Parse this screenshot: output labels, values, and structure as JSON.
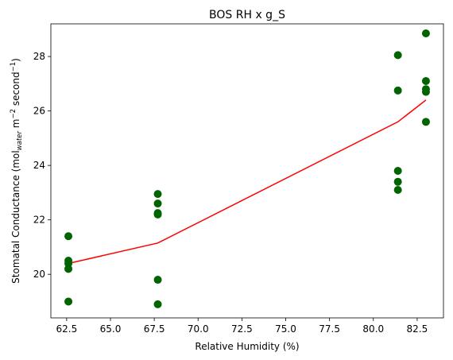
{
  "chart_data": {
    "type": "scatter",
    "title": "BOS RH x g_S",
    "xlabel": "Relative Humidity (%)",
    "ylabel": {
      "prefix": "Stomatal Conductance (mol",
      "sub": "water",
      "mid1": " m",
      "sup1": "−2",
      "mid2": " second",
      "sup2": "−1",
      "suffix": ")"
    },
    "xlim": [
      61.6,
      84.0
    ],
    "ylim": [
      18.4,
      29.2
    ],
    "x_ticks": [
      62.5,
      65.0,
      67.5,
      70.0,
      72.5,
      75.0,
      77.5,
      80.0,
      82.5
    ],
    "x_tick_labels": [
      "62.5",
      "65.0",
      "67.5",
      "70.0",
      "72.5",
      "75.0",
      "77.5",
      "80.0",
      "82.5"
    ],
    "y_ticks": [
      20,
      22,
      24,
      26,
      28
    ],
    "y_tick_labels": [
      "20",
      "22",
      "24",
      "26",
      "28"
    ],
    "grid": false,
    "series": [
      {
        "type": "scatter",
        "color": "#006400",
        "points": [
          [
            62.6,
            21.4
          ],
          [
            62.6,
            20.5
          ],
          [
            62.6,
            20.4
          ],
          [
            62.6,
            20.2
          ],
          [
            62.6,
            19.0
          ],
          [
            67.7,
            22.95
          ],
          [
            67.7,
            22.6
          ],
          [
            67.7,
            22.25
          ],
          [
            67.7,
            22.2
          ],
          [
            67.7,
            19.8
          ],
          [
            67.7,
            18.9
          ],
          [
            81.4,
            28.05
          ],
          [
            81.4,
            26.75
          ],
          [
            81.4,
            23.8
          ],
          [
            81.4,
            23.4
          ],
          [
            81.4,
            23.1
          ],
          [
            83.0,
            28.85
          ],
          [
            83.0,
            27.1
          ],
          [
            83.0,
            26.8
          ],
          [
            83.0,
            26.7
          ],
          [
            83.0,
            25.6
          ]
        ]
      },
      {
        "type": "line",
        "color": "#ff0000",
        "points": [
          [
            62.6,
            20.4
          ],
          [
            67.7,
            21.15
          ],
          [
            81.4,
            25.6
          ],
          [
            83.0,
            26.4
          ]
        ]
      }
    ]
  }
}
